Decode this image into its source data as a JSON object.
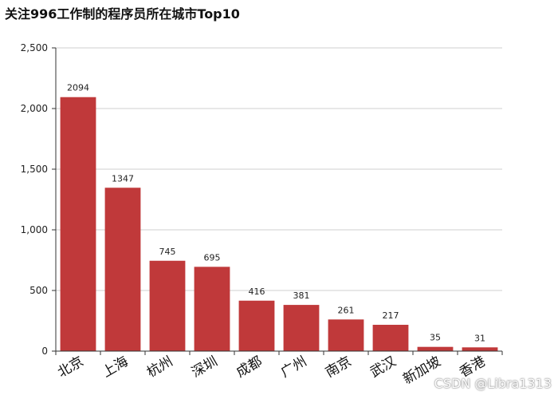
{
  "chart_data": {
    "type": "bar",
    "title": "关注996工作制的程序员所在城市Top10",
    "categories": [
      "北京",
      "上海",
      "杭州",
      "深圳",
      "成都",
      "广州",
      "南京",
      "武汉",
      "新加坡",
      "香港"
    ],
    "values": [
      2094,
      1347,
      745,
      695,
      416,
      381,
      261,
      217,
      35,
      31
    ],
    "ylim": [
      0,
      2500
    ],
    "yticks": [
      0,
      500,
      1000,
      1500,
      2000,
      2500
    ],
    "ytick_labels": [
      "0",
      "500",
      "1,000",
      "1,500",
      "2,000",
      "2,500"
    ],
    "bar_color": "#c0393a",
    "grid": true,
    "legend": "none"
  },
  "watermark": "CSDN @Libra1313"
}
